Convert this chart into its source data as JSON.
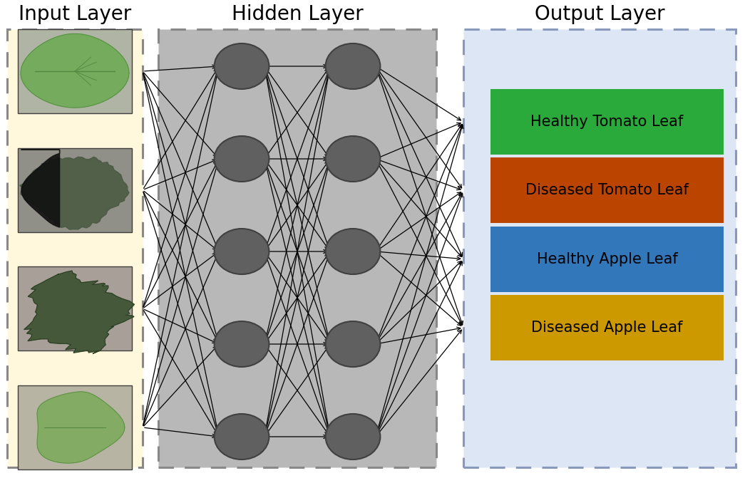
{
  "title_input": "Input Layer",
  "title_hidden": "Hidden Layer",
  "title_output": "Output Layer",
  "bg_color": "#ffffff",
  "input_box_color": "#fff8dc",
  "input_box_edge": "#888888",
  "hidden_box_color": "#b8b8b8",
  "hidden_box_edge": "#888888",
  "output_box_color": "#dce6f5",
  "output_box_edge": "#8899bb",
  "node_color": "#606060",
  "node_edge_color": "#404040",
  "output_labels": [
    "Healthy Tomato Leaf",
    "Diseased Tomato Leaf",
    "Healthy Apple Leaf",
    "Diseased Apple Leaf"
  ],
  "output_colors": [
    "#2aaa3a",
    "#bb4400",
    "#3377bb",
    "#cc9900"
  ],
  "output_text_color": "#000000",
  "title_fontsize": 20,
  "label_fontsize": 15,
  "n_hidden1": 5,
  "n_hidden2": 5,
  "n_output": 4,
  "n_input": 4,
  "leaf_img_colors_bg": [
    "#c8c8b0",
    "#b0a898",
    "#909888",
    "#b8c8a8"
  ],
  "leaf_colors": [
    [
      "#7aaa60",
      "#88bb70",
      "#6a9850",
      "#c8c0a0"
    ],
    [
      "#506040",
      "#405030",
      "#384828",
      "#a09080"
    ],
    [
      "#485840",
      "#384830",
      "#405038",
      "#202818"
    ],
    [
      "#70a858",
      "#80b868",
      "#609848",
      "#c0c8b0"
    ]
  ]
}
